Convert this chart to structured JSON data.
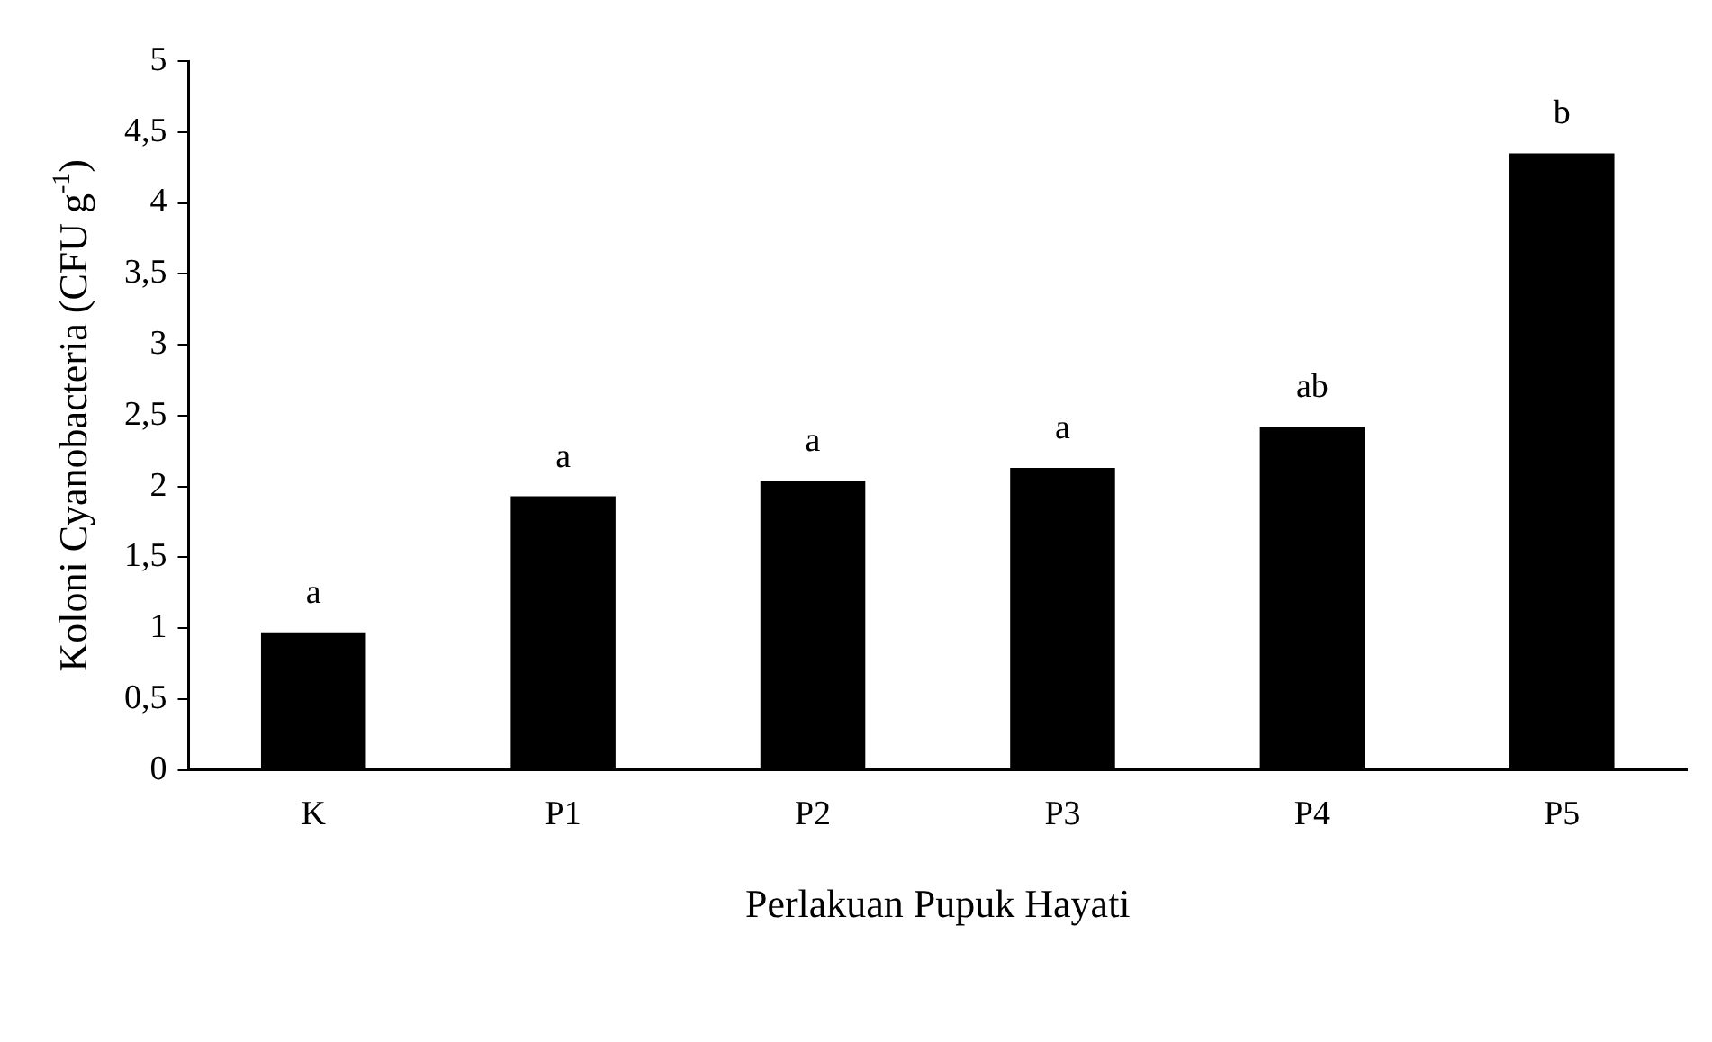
{
  "chart_data": {
    "type": "bar",
    "xlabel": "Perlakuan Pupuk Hayati",
    "ylabel": "Koloni Cyanobacteria (CFU g$^{-1}$)",
    "categories": [
      "K",
      "P1",
      "P2",
      "P3",
      "P4",
      "P5"
    ],
    "values": [
      0.97,
      1.93,
      2.04,
      2.13,
      2.42,
      4.35
    ],
    "color": "#000000",
    "ylim": [
      0,
      5
    ],
    "yticks": [
      {
        "value": 0,
        "label": "0"
      },
      {
        "value": 0.5,
        "label": "0,5"
      },
      {
        "value": 1,
        "label": "1"
      },
      {
        "value": 1.5,
        "label": "1,5"
      },
      {
        "value": 2,
        "label": "2"
      },
      {
        "value": 2.5,
        "label": "2,5"
      },
      {
        "value": 3,
        "label": "3"
      },
      {
        "value": 3.5,
        "label": "3,5"
      },
      {
        "value": 4,
        "label": "4"
      },
      {
        "value": 4.5,
        "label": "4,5"
      },
      {
        "value": 5,
        "label": "5"
      }
    ],
    "grid": false,
    "legend": false,
    "annotations": [
      {
        "text": "a",
        "x": "K",
        "y": 0.97
      },
      {
        "text": "a",
        "x": "P1",
        "y": 1.93
      },
      {
        "text": "a",
        "x": "P2",
        "y": 2.04
      },
      {
        "text": "a",
        "x": "P3",
        "y": 2.13
      },
      {
        "text": "ab",
        "x": "P4",
        "y": 2.42
      },
      {
        "text": "b",
        "x": "P5",
        "y": 4.35
      }
    ]
  }
}
